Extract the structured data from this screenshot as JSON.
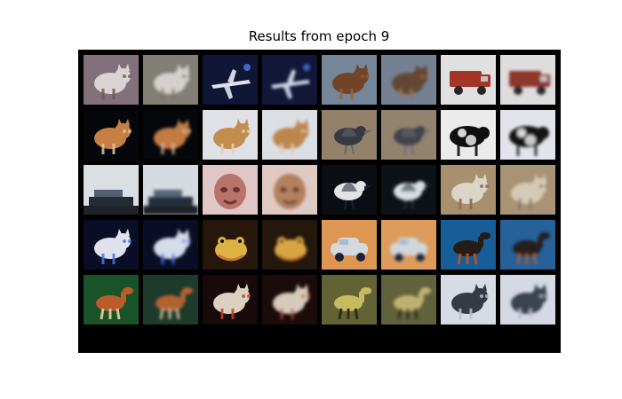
{
  "page": {
    "title": "Results from epoch 9"
  },
  "grid": {
    "rows": 5,
    "cols": 8,
    "tiles": [
      {
        "kind": "dog",
        "bg": "#8e7a86",
        "subject": "#ece7e3",
        "accent": "#7a5f54",
        "blur": 0
      },
      {
        "kind": "dog",
        "bg": "#8c8a80",
        "subject": "#e6e2dd",
        "accent": "#8a7a6b",
        "blur": 1.6
      },
      {
        "kind": "airplane",
        "bg": "#12183a",
        "subject": "#f2f6ff",
        "accent": "#5c86ff",
        "blur": 0
      },
      {
        "kind": "airplane",
        "bg": "#14183c",
        "subject": "#e6f0ff",
        "accent": "#587cff",
        "blur": 1.6
      },
      {
        "kind": "dog",
        "bg": "#7f92a6",
        "subject": "#7a4a2a",
        "accent": "#a3684b",
        "blur": 0
      },
      {
        "kind": "dog",
        "bg": "#7f8da0",
        "subject": "#6c4e38",
        "accent": "#b07a55",
        "blur": 1.6
      },
      {
        "kind": "truck",
        "bg": "#f4f4f4",
        "subject": "#b23b2b",
        "accent": "#2a2a2a",
        "blur": 0
      },
      {
        "kind": "truck",
        "bg": "#f0f0f0",
        "subject": "#9b3a2f",
        "accent": "#2d2d2d",
        "blur": 1.6
      },
      {
        "kind": "cat",
        "bg": "#05070a",
        "subject": "#d98a4a",
        "accent": "#f2d6b1",
        "blur": 0
      },
      {
        "kind": "cat",
        "bg": "#06080b",
        "subject": "#d28648",
        "accent": "#f0d2ad",
        "blur": 1.6
      },
      {
        "kind": "dog",
        "bg": "#f2f5fb",
        "subject": "#d39a55",
        "accent": "#f7e2c6",
        "blur": 0
      },
      {
        "kind": "dog",
        "bg": "#eef2f8",
        "subject": "#cd9352",
        "accent": "#f4dfc4",
        "blur": 1.6
      },
      {
        "kind": "bird",
        "bg": "#a18d74",
        "subject": "#3d3d45",
        "accent": "#6c6f7a",
        "blur": 0
      },
      {
        "kind": "bird",
        "bg": "#9f8f78",
        "subject": "#4a4a52",
        "accent": "#727681",
        "blur": 1.6
      },
      {
        "kind": "cow",
        "bg": "#ffffff",
        "subject": "#111111",
        "accent": "#2a2a2a",
        "blur": 0
      },
      {
        "kind": "cow",
        "bg": "#f7f7ff",
        "subject": "#151515",
        "accent": "#3a3a4a",
        "blur": 1.6
      },
      {
        "kind": "ship",
        "bg": "#eef2f7",
        "subject": "#1c2430",
        "accent": "#516074",
        "blur": 0
      },
      {
        "kind": "ship",
        "bg": "#e8edf3",
        "subject": "#20283a",
        "accent": "#576a80",
        "blur": 1.6
      },
      {
        "kind": "face",
        "bg": "#f3d7d7",
        "subject": "#c87d73",
        "accent": "#5b1e1e",
        "blur": 0
      },
      {
        "kind": "face",
        "bg": "#f3dbd2",
        "subject": "#c38b69",
        "accent": "#5f2b1d",
        "blur": 1.6
      },
      {
        "kind": "bird",
        "bg": "#0b0f14",
        "subject": "#f5f7fa",
        "accent": "#1c2636",
        "blur": 0
      },
      {
        "kind": "bird",
        "bg": "#0f1418",
        "subject": "#eaf1f5",
        "accent": "#27344a",
        "blur": 1.6
      },
      {
        "kind": "cat",
        "bg": "#b79c78",
        "subject": "#efe7d7",
        "accent": "#8e735d",
        "blur": 0
      },
      {
        "kind": "cat",
        "bg": "#b7a07e",
        "subject": "#e8dcc5",
        "accent": "#8b7461",
        "blur": 1.6
      },
      {
        "kind": "dog",
        "bg": "#0b0f2a",
        "subject": "#f4f6ff",
        "accent": "#4f7dff",
        "blur": 0
      },
      {
        "kind": "dog",
        "bg": "#0a0f2a",
        "subject": "#e8eeff",
        "accent": "#4f78ff",
        "blur": 1.6
      },
      {
        "kind": "frog",
        "bg": "#2a1a0b",
        "subject": "#f2c04a",
        "accent": "#d0752e",
        "blur": 0
      },
      {
        "kind": "frog",
        "bg": "#281a0c",
        "subject": "#eab54a",
        "accent": "#c86e2c",
        "blur": 1.6
      },
      {
        "kind": "car",
        "bg": "#f0a45a",
        "subject": "#e7ecf3",
        "accent": "#1d2738",
        "blur": 0
      },
      {
        "kind": "car",
        "bg": "#f0aa63",
        "subject": "#e3e9f0",
        "accent": "#223247",
        "blur": 1.6
      },
      {
        "kind": "horse",
        "bg": "#1a66a6",
        "subject": "#2a1f18",
        "accent": "#c25a2c",
        "blur": 0
      },
      {
        "kind": "horse",
        "bg": "#2a6aa8",
        "subject": "#2a2420",
        "accent": "#c0662f",
        "blur": 1.6
      },
      {
        "kind": "horse",
        "bg": "#1c5b2b",
        "subject": "#c9642d",
        "accent": "#e6d3a8",
        "blur": 0
      },
      {
        "kind": "horse",
        "bg": "#203f2f",
        "subject": "#c46a34",
        "accent": "#d8c8a3",
        "blur": 1.6
      },
      {
        "kind": "dog",
        "bg": "#1b0b0b",
        "subject": "#efe3d2",
        "accent": "#c74b2e",
        "blur": 0
      },
      {
        "kind": "dog",
        "bg": "#1e0d0d",
        "subject": "#e9dccb",
        "accent": "#c14e2f",
        "blur": 1.6
      },
      {
        "kind": "deer",
        "bg": "#6b6c3a",
        "subject": "#d8cb6b",
        "accent": "#3a2f1b",
        "blur": 0
      },
      {
        "kind": "deer",
        "bg": "#6a6a42",
        "subject": "#cfc27a",
        "accent": "#3a321f",
        "blur": 1.6
      },
      {
        "kind": "cat",
        "bg": "#e9eef8",
        "subject": "#3a3f4a",
        "accent": "#c9d2e6",
        "blur": 0
      },
      {
        "kind": "cat",
        "bg": "#e6ecf7",
        "subject": "#404856",
        "accent": "#c6cfe2",
        "blur": 1.6
      }
    ]
  }
}
